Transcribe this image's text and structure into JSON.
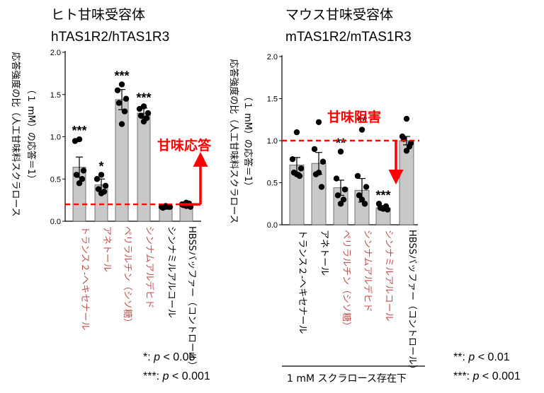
{
  "chart_data": [
    {
      "type": "bar",
      "title": "ヒト甘味受容体",
      "subtitle": "hTAS1R2/hTAS1R3",
      "ylabel_line1": "応答強度の比（人工甘味料スクラロース",
      "ylabel_line2": "（１ mM）の応答＝1）",
      "ylim": [
        0,
        2.0
      ],
      "yticks": [
        "0.0",
        "0.5",
        "1.0",
        "1.5",
        "2.0"
      ],
      "reference_line": 0.2,
      "annotation": "甘味応答",
      "annotation_color": "#ff0000",
      "categories": [
        {
          "label": "トランス２-ヘキセナール",
          "color": "#c0504d"
        },
        {
          "label": "アネトール",
          "color": "#c0504d"
        },
        {
          "label": "ペリラルチン（シソ糖）",
          "color": "#c0504d"
        },
        {
          "label": "シンナムアルデヒド",
          "color": "#c0504d"
        },
        {
          "label": "シンナミルアルコール",
          "color": "#000000"
        },
        {
          "label": "HBSSバッファー（コントロール）",
          "color": "#000000"
        }
      ],
      "values": [
        0.64,
        0.43,
        1.44,
        1.28,
        0.17,
        0.2
      ],
      "errors": [
        0.12,
        0.07,
        0.12,
        0.06,
        0.01,
        0.03
      ],
      "significance": [
        "***",
        "*",
        "***",
        "***",
        "",
        ""
      ],
      "points": [
        [
          0.97,
          0.95,
          0.6,
          0.55,
          0.5,
          0.45
        ],
        [
          0.55,
          0.5,
          0.42,
          0.38,
          0.35,
          0.33
        ],
        [
          1.62,
          1.55,
          1.45,
          1.4,
          1.3,
          1.15
        ],
        [
          1.36,
          1.33,
          1.28,
          1.25,
          1.22,
          1.18
        ],
        [
          0.17,
          0.17,
          0.17,
          0.16,
          0.17,
          0.18
        ],
        [
          0.22,
          0.2,
          0.17,
          0.19,
          0.21,
          0.18
        ]
      ],
      "legend": [
        {
          "prefix": "*: ",
          "p": "p",
          "suffix": " < 0.05"
        },
        {
          "prefix": "***: ",
          "p": "p",
          "suffix": " < 0.001"
        }
      ]
    },
    {
      "type": "bar",
      "title": "マウス甘味受容体",
      "subtitle": "mTAS1R2/mTAS1R3",
      "ylabel_line1": "応答強度の比（人工甘味料スクラロース",
      "ylabel_line2": "（１ mM）の応答＝1）",
      "ylim": [
        0,
        2.0
      ],
      "yticks": [
        "0.0",
        "0.5",
        "1.0",
        "1.5",
        "2.0"
      ],
      "reference_line": 1.0,
      "annotation": "甘味阻害",
      "annotation_color": "#ff0000",
      "categories": [
        {
          "label": "トランス２-ヘキセナール",
          "color": "#000000"
        },
        {
          "label": "アネトール",
          "color": "#000000"
        },
        {
          "label": "ペリラルチン（シソ糖）",
          "color": "#c0504d"
        },
        {
          "label": "シンナムアルデヒド",
          "color": "#c0504d"
        },
        {
          "label": "シンナミルアルコール",
          "color": "#c0504d"
        },
        {
          "label": "HBSSバッファー（コントロール）",
          "color": "#000000"
        }
      ],
      "values": [
        0.71,
        0.73,
        0.44,
        0.41,
        0.2,
        1.0
      ],
      "errors": [
        0.09,
        0.13,
        0.09,
        0.14,
        0.02,
        0.05
      ],
      "significance": [
        "",
        "",
        "**",
        "**",
        "***",
        ""
      ],
      "points": [
        [
          1.1,
          0.78,
          0.67,
          0.62,
          0.58,
          0.6
        ],
        [
          1.22,
          0.9,
          0.75,
          0.6,
          0.45,
          0.62
        ],
        [
          0.87,
          0.55,
          0.42,
          0.35,
          0.3,
          0.25
        ],
        [
          1.13,
          0.58,
          0.45,
          0.35,
          0.25,
          0.3
        ],
        [
          0.2,
          0.25,
          0.18,
          0.2,
          0.22,
          0.19
        ],
        [
          1.26,
          1.05,
          0.97,
          1.02,
          0.93,
          0.88
        ]
      ],
      "footer": "1 mM スクラロース存在下",
      "legend": [
        {
          "prefix": "**: ",
          "p": "p",
          "suffix": " < 0.01"
        },
        {
          "prefix": "***: ",
          "p": "p",
          "suffix": " < 0.001"
        }
      ]
    }
  ]
}
